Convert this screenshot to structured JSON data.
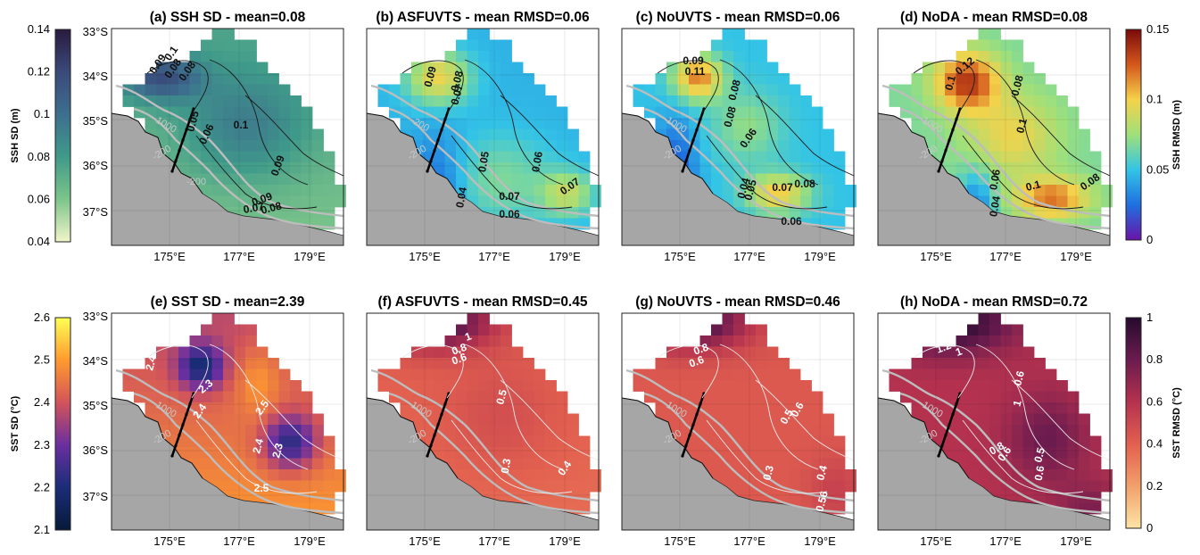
{
  "panels": [
    {
      "id": "a",
      "title": "(a) SSH SD - mean=0.08",
      "field": "ssh_sd",
      "lat_labels": [
        "33°S",
        "34°S",
        "35°S",
        "36°S",
        "37°S"
      ],
      "lon_labels": [
        "175°E",
        "177°E",
        "179°E"
      ],
      "isobaths": [
        "-1000",
        "-200",
        "-200"
      ],
      "contour_labels": [
        "0.1",
        "0.09",
        "0.08",
        "0.08",
        "0.05",
        "0.06",
        "0.1",
        "0.09",
        "0.09",
        "0.08",
        "0.07"
      ]
    },
    {
      "id": "b",
      "title": "(b) ASFUVTS - mean RMSD=0.06",
      "field": "ssh_rmsd",
      "lon_labels": [
        "175°E",
        "177°E",
        "179°E"
      ],
      "isobaths": [
        "-200",
        "-200"
      ],
      "contour_labels": [
        "0.09",
        "0.08",
        "0.07",
        "0.05",
        "0.06",
        "0.07",
        "0.07",
        "0.06",
        "0.04"
      ]
    },
    {
      "id": "c",
      "title": "(c) NoUVTS - mean RMSD=0.06",
      "field": "ssh_rmsd",
      "lon_labels": [
        "175°E",
        "177°E",
        "179°E"
      ],
      "isobaths": [
        "-1000",
        "-200"
      ],
      "contour_labels": [
        "0.09",
        "0.11",
        "0.08",
        "0.08",
        "0.06",
        "0.07",
        "0.08",
        "0.04",
        "0.05",
        "0.06"
      ]
    },
    {
      "id": "d",
      "title": "(d) NoDA - mean RMSD=0.08",
      "field": "ssh_rmsd",
      "lon_labels": [
        "175°E",
        "177°E",
        "179°E"
      ],
      "isobaths": [
        "-1000",
        "-200"
      ],
      "contour_labels": [
        "0.12",
        "0.1",
        "0.08",
        "0.1",
        "0.06",
        "0.04",
        "0.1",
        "0.08"
      ]
    },
    {
      "id": "e",
      "title": "(e) SST SD - mean=2.39",
      "field": "sst_sd",
      "lat_labels": [
        "33°S",
        "34°S",
        "35°S",
        "36°S",
        "37°S"
      ],
      "lon_labels": [
        "175°E",
        "177°E",
        "179°E"
      ],
      "isobaths": [
        "-1000",
        "-200"
      ],
      "contour_labels": [
        "2.4",
        "2.3",
        "2.4",
        "2.5",
        "2.4",
        "2.3",
        "2.5"
      ]
    },
    {
      "id": "f",
      "title": "(f) ASFUVTS - mean RMSD=0.45",
      "field": "sst_rmsd",
      "lon_labels": [
        "175°E",
        "177°E",
        "179°E"
      ],
      "isobaths": [
        "-1000",
        "-200"
      ],
      "contour_labels": [
        "1",
        "0.8",
        "0.6",
        "0.5",
        "0.3",
        "0.4"
      ]
    },
    {
      "id": "g",
      "title": "(g) NoUVTS - mean RMSD=0.46",
      "field": "sst_rmsd",
      "lon_labels": [
        "175°E",
        "177°E",
        "179°E"
      ],
      "isobaths": [
        "-1000",
        "-200"
      ],
      "contour_labels": [
        "0.8",
        "0.6",
        "0.6",
        "0.5",
        "0.3",
        "0.4",
        "0.56"
      ]
    },
    {
      "id": "h",
      "title": "(h) NoDA - mean RMSD=0.72",
      "field": "sst_rmsd",
      "lon_labels": [
        "175°E",
        "177°E",
        "179°E"
      ],
      "isobaths": [
        "-1000",
        "-200"
      ],
      "contour_labels": [
        "1.2",
        "1",
        "0.6",
        "1",
        "0.8",
        "0.6",
        "0.5",
        "0.6"
      ]
    }
  ],
  "colorbars": {
    "ssh_sd": {
      "label": "SSH SD (m)",
      "ticks": [
        "0.14",
        "0.12",
        "0.1",
        "0.08",
        "0.06",
        "0.04"
      ],
      "colors": [
        "#2a1a3f",
        "#3a4a7a",
        "#3d6f8e",
        "#3f9a8a",
        "#7cc58a",
        "#f2f5c8"
      ]
    },
    "ssh_rmsd": {
      "label": "SSH RMSD (m)",
      "ticks": [
        "0.15",
        "0.1",
        "0.05",
        "0"
      ],
      "colors": [
        "#7a0a0a",
        "#d4571c",
        "#f5d24a",
        "#9fe07a",
        "#33c4e6",
        "#1f6fe0",
        "#6a14a8"
      ]
    },
    "sst_sd": {
      "label": "SST SD (°C)",
      "ticks": [
        "2.6",
        "2.5",
        "2.4",
        "2.3",
        "2.2",
        "2.1"
      ],
      "colors": [
        "#ffff55",
        "#ff9a2e",
        "#d2545a",
        "#6a2fa0",
        "#1a2d78",
        "#061a3a"
      ]
    },
    "sst_rmsd": {
      "label": "SST RMSD (°C)",
      "ticks": [
        "1",
        "0.8",
        "0.6",
        "0.4",
        "0.2",
        "0"
      ],
      "colors": [
        "#250b2e",
        "#6b1b4f",
        "#b5324f",
        "#e2604f",
        "#f2a06a",
        "#fde4a5"
      ]
    }
  }
}
